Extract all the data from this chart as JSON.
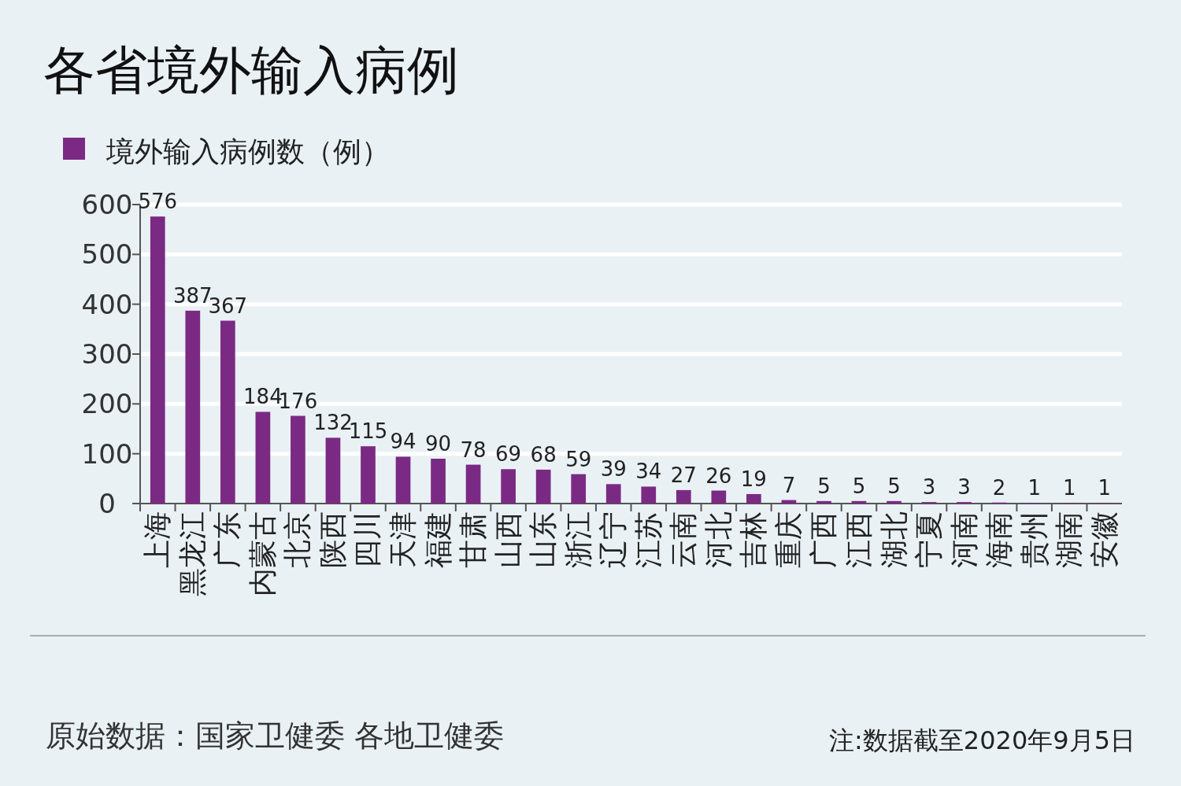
{
  "chart_data": {
    "type": "bar",
    "title": "各省境外输入病例",
    "categories": [
      "上海",
      "黑龙江",
      "广东",
      "内蒙古",
      "北京",
      "陕西",
      "四川",
      "天津",
      "福建",
      "甘肃",
      "山西",
      "山东",
      "浙江",
      "辽宁",
      "江苏",
      "云南",
      "河北",
      "吉林",
      "重庆",
      "广西",
      "江西",
      "湖北",
      "宁夏",
      "河南",
      "海南",
      "贵州",
      "湖南",
      "安徽"
    ],
    "series": [
      {
        "name": "境外输入病例数（例）",
        "color": "#7b2a84",
        "values": [
          576,
          387,
          367,
          184,
          176,
          132,
          115,
          94,
          90,
          78,
          69,
          68,
          59,
          39,
          34,
          27,
          26,
          19,
          7,
          5,
          5,
          5,
          3,
          3,
          2,
          1,
          1,
          1
        ]
      }
    ],
    "ylim": [
      0,
      600
    ],
    "yticks": [
      0,
      100,
      200,
      300,
      400,
      500,
      600
    ],
    "grid": "y",
    "legend": "top left",
    "data_labels": true,
    "annotations": [
      "原始数据：国家卫健委 各地卫健委",
      "注:数据截至2020年9月5日"
    ]
  }
}
